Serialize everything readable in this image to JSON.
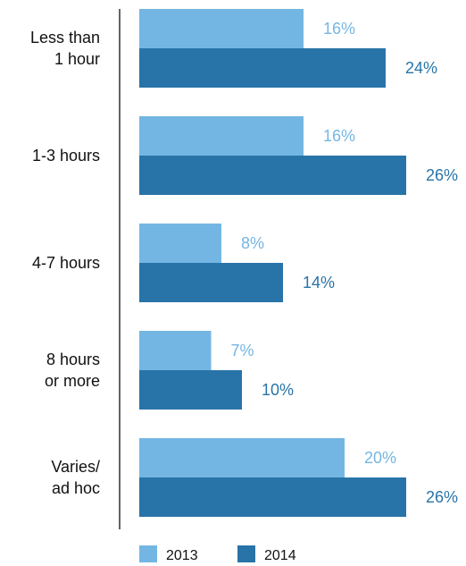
{
  "chart_data": {
    "type": "bar",
    "orientation": "horizontal",
    "categories": [
      [
        "Less than",
        "1 hour"
      ],
      [
        "1-3 hours"
      ],
      [
        "4-7 hours"
      ],
      [
        "8 hours",
        "or more"
      ],
      [
        "Varies/",
        "ad hoc"
      ]
    ],
    "series": [
      {
        "name": "2013",
        "color": "#74b6e3",
        "values": [
          16,
          16,
          8,
          7,
          20
        ],
        "labels": [
          "16%",
          "16%",
          "8%",
          "7%",
          "20%"
        ]
      },
      {
        "name": "2014",
        "color": "#2874a8",
        "values": [
          24,
          26,
          14,
          10,
          26
        ],
        "labels": [
          "24%",
          "26%",
          "14%",
          "10%",
          "26%"
        ]
      }
    ],
    "value_unit": "%",
    "axis": "vertical line at left of bars, no ticks",
    "grid": false,
    "legend": {
      "position": "bottom",
      "items": [
        "2013",
        "2014"
      ]
    }
  }
}
